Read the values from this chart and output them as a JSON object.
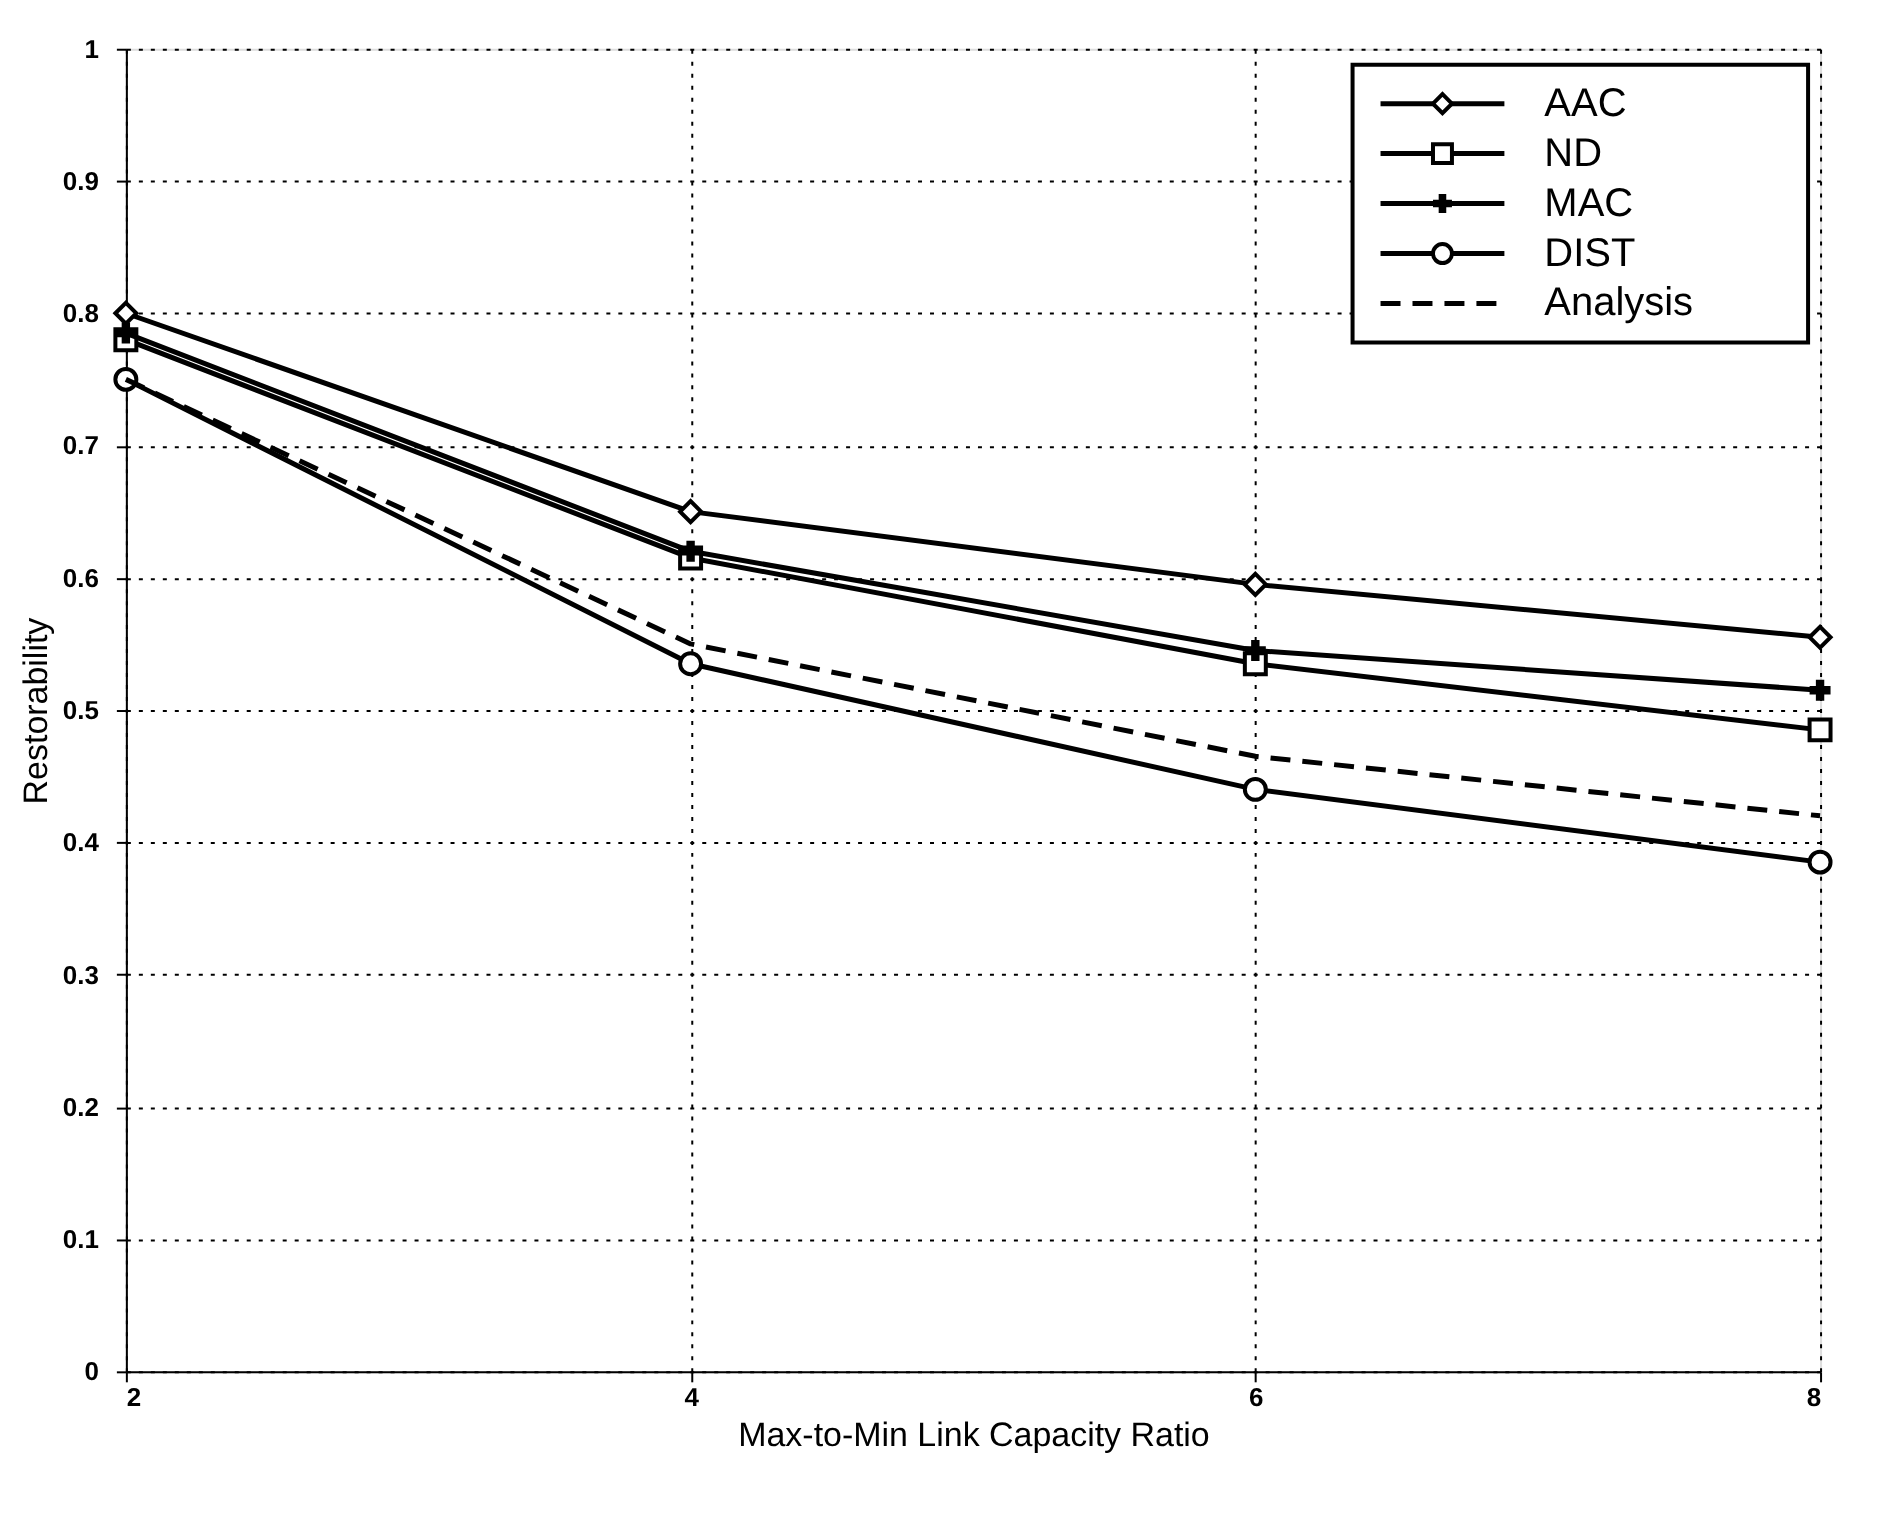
{
  "chart_data": {
    "type": "line",
    "xlabel": "Max-to-Min Link Capacity Ratio",
    "ylabel": "Restorability",
    "x": [
      2,
      4,
      6,
      8
    ],
    "series": [
      {
        "name": "AAC",
        "color": "#000000",
        "marker": "diamond",
        "line_style": "solid",
        "values": [
          0.8,
          0.65,
          0.595,
          0.555
        ]
      },
      {
        "name": "ND",
        "color": "#000000",
        "marker": "square",
        "line_style": "solid",
        "values": [
          0.78,
          0.615,
          0.535,
          0.485
        ]
      },
      {
        "name": "MAC",
        "color": "#000000",
        "marker": "cross",
        "line_style": "solid",
        "values": [
          0.785,
          0.62,
          0.545,
          0.515
        ]
      },
      {
        "name": "DIST",
        "color": "#000000",
        "marker": "circle",
        "line_style": "solid",
        "values": [
          0.75,
          0.535,
          0.44,
          0.385
        ]
      },
      {
        "name": "Analysis",
        "color": "#000000",
        "marker": "none",
        "line_style": "dashed",
        "values": [
          0.75,
          0.55,
          0.465,
          0.42
        ]
      }
    ],
    "xlim": [
      2,
      8
    ],
    "xticks": [
      2,
      4,
      6,
      8
    ],
    "ylim": [
      0,
      1
    ],
    "yticks": [
      0,
      0.1,
      0.2,
      0.3,
      0.4,
      0.5,
      0.6,
      0.7,
      0.8,
      0.9,
      1
    ],
    "grid": true,
    "legend": "top right"
  }
}
